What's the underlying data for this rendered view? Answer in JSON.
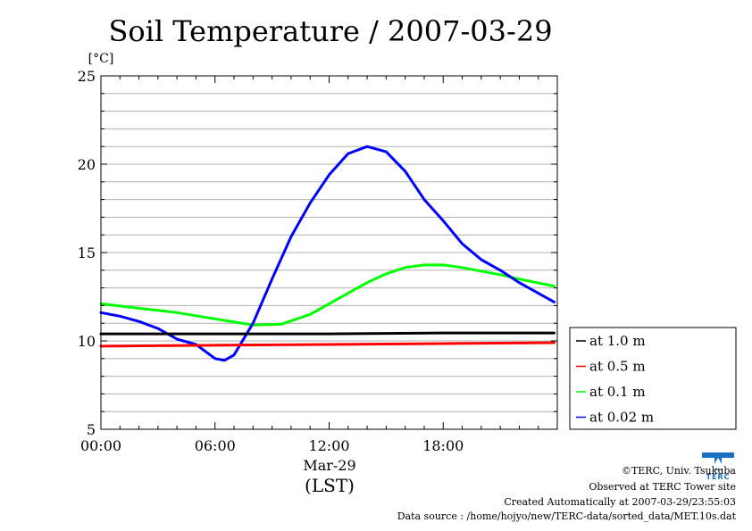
{
  "chart_data": {
    "type": "line",
    "title": "Soil Temperature / 2007-03-29",
    "ylabel": "[°C]",
    "xlabel": "(LST)",
    "date_label": "Mar-29",
    "ylim": [
      5,
      25
    ],
    "xlim": [
      "00:00",
      "23:50"
    ],
    "y_ticks": [
      "5",
      "10",
      "15",
      "20",
      "25"
    ],
    "x_ticks": [
      "00:00",
      "06:00",
      "12:00",
      "18:00"
    ],
    "grid": "horizontal",
    "legend_position": "right",
    "series": [
      {
        "name": "at 1.0 m",
        "color": "#000000",
        "x": [
          "00:00",
          "06:00",
          "12:00",
          "18:00",
          "23:50"
        ],
        "values": [
          10.4,
          10.4,
          10.4,
          10.45,
          10.45
        ]
      },
      {
        "name": "at 0.5 m",
        "color": "#ff0000",
        "x": [
          "00:00",
          "06:00",
          "12:00",
          "18:00",
          "23:50"
        ],
        "values": [
          9.7,
          9.75,
          9.8,
          9.85,
          9.9
        ]
      },
      {
        "name": "at 0.1 m",
        "color": "#00ff00",
        "x": [
          "00:00",
          "02:00",
          "04:00",
          "06:00",
          "08:00",
          "09:30",
          "11:00",
          "12:00",
          "13:00",
          "14:00",
          "15:00",
          "16:00",
          "17:00",
          "18:00",
          "19:00",
          "20:00",
          "21:00",
          "22:00",
          "23:50"
        ],
        "values": [
          12.1,
          11.85,
          11.6,
          11.25,
          10.9,
          10.95,
          11.5,
          12.1,
          12.7,
          13.3,
          13.8,
          14.15,
          14.3,
          14.3,
          14.15,
          13.95,
          13.75,
          13.5,
          13.1
        ]
      },
      {
        "name": "at 0.02 m",
        "color": "#0000ff",
        "x": [
          "00:00",
          "01:00",
          "02:00",
          "03:00",
          "04:00",
          "05:00",
          "06:00",
          "06:30",
          "07:00",
          "08:00",
          "09:00",
          "10:00",
          "11:00",
          "12:00",
          "13:00",
          "14:00",
          "15:00",
          "16:00",
          "17:00",
          "18:00",
          "19:00",
          "20:00",
          "21:00",
          "22:00",
          "23:50"
        ],
        "values": [
          11.6,
          11.4,
          11.1,
          10.7,
          10.1,
          9.8,
          9.0,
          8.9,
          9.2,
          11.0,
          13.5,
          15.9,
          17.8,
          19.4,
          20.6,
          21.0,
          20.7,
          19.6,
          18.0,
          16.8,
          15.5,
          14.6,
          14.0,
          13.3,
          12.2
        ]
      }
    ]
  },
  "footer": {
    "copyright": "©TERC, Univ. Tsukuba",
    "observed": "Observed at TERC Tower site",
    "created": "Created Automatically at 2007-03-29/23:55:03",
    "source": "Data source : /home/hojyo/new/TERC-data/sorted_data/MET.10s.dat"
  },
  "logo": {
    "icon": "terc-logo-icon",
    "text": "TERC",
    "color": "#1a6fc2"
  }
}
